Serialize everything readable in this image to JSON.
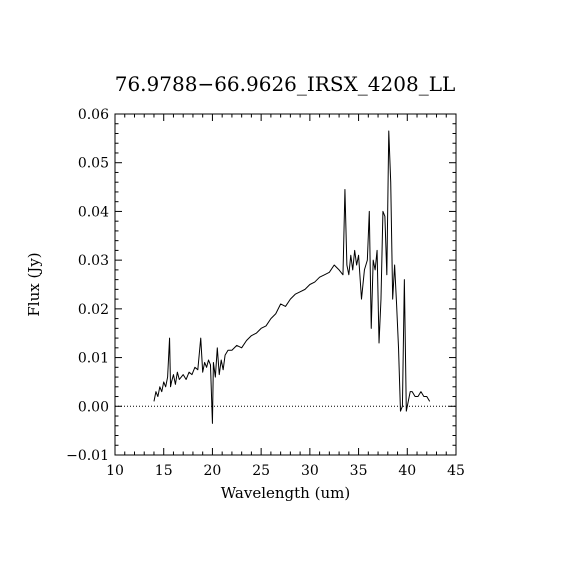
{
  "chart_data": {
    "type": "line",
    "title": "76.9788−66.9626_IRSX_4208_LL",
    "xlabel": "Wavelength (um)",
    "ylabel": "Flux (Jy)",
    "xlim": [
      10,
      45
    ],
    "ylim": [
      -0.01,
      0.06
    ],
    "x_ticks": [
      "10",
      "15",
      "20",
      "25",
      "30",
      "35",
      "40",
      "45"
    ],
    "x_tick_values": [
      10,
      15,
      20,
      25,
      30,
      35,
      40,
      45
    ],
    "y_ticks": [
      "−0.01",
      "0.00",
      "0.01",
      "0.02",
      "0.03",
      "0.04",
      "0.05",
      "0.06"
    ],
    "y_tick_values": [
      -0.01,
      0.0,
      0.01,
      0.02,
      0.03,
      0.04,
      0.05,
      0.06
    ],
    "zero_line": true,
    "series": [
      {
        "x": [
          14.0,
          14.2,
          14.4,
          14.6,
          14.8,
          15.0,
          15.2,
          15.4,
          15.6,
          15.7,
          15.8,
          16.0,
          16.2,
          16.4,
          16.6,
          16.8,
          17.0,
          17.3,
          17.6,
          17.9,
          18.2,
          18.5,
          18.8,
          19.0,
          19.2,
          19.4,
          19.6,
          19.8,
          20.0,
          20.1,
          20.3,
          20.5,
          20.7,
          20.9,
          21.1,
          21.3,
          21.6,
          22.0,
          22.5,
          23.0,
          23.5,
          24.0,
          24.5,
          25.0,
          25.5,
          26.0,
          26.5,
          27.0,
          27.5,
          28.0,
          28.5,
          29.0,
          29.5,
          30.0,
          30.5,
          31.0,
          31.5,
          32.0,
          32.5,
          33.0,
          33.4,
          33.6,
          33.8,
          34.0,
          34.2,
          34.4,
          34.6,
          34.8,
          35.0,
          35.3,
          35.6,
          35.9,
          36.1,
          36.3,
          36.5,
          36.7,
          36.9,
          37.1,
          37.3,
          37.5,
          37.7,
          37.9,
          38.1,
          38.3,
          38.5,
          38.7,
          38.9,
          39.1,
          39.3,
          39.5,
          39.7,
          39.9,
          40.1,
          40.3,
          40.5,
          40.8,
          41.1,
          41.4,
          41.7,
          42.0,
          42.3
        ],
        "y": [
          0.001,
          0.003,
          0.002,
          0.004,
          0.003,
          0.005,
          0.004,
          0.006,
          0.014,
          0.004,
          0.005,
          0.0065,
          0.0045,
          0.007,
          0.0055,
          0.006,
          0.0065,
          0.0055,
          0.007,
          0.0065,
          0.008,
          0.0075,
          0.014,
          0.007,
          0.009,
          0.008,
          0.0095,
          0.0085,
          -0.0035,
          0.009,
          0.006,
          0.012,
          0.0065,
          0.0095,
          0.0075,
          0.0105,
          0.0115,
          0.0115,
          0.0125,
          0.012,
          0.0135,
          0.0145,
          0.015,
          0.016,
          0.0165,
          0.018,
          0.019,
          0.021,
          0.0205,
          0.022,
          0.023,
          0.0235,
          0.024,
          0.025,
          0.0255,
          0.0265,
          0.027,
          0.0275,
          0.029,
          0.028,
          0.027,
          0.0445,
          0.029,
          0.027,
          0.031,
          0.028,
          0.032,
          0.029,
          0.031,
          0.022,
          0.028,
          0.03,
          0.04,
          0.016,
          0.03,
          0.028,
          0.032,
          0.013,
          0.022,
          0.04,
          0.039,
          0.027,
          0.0565,
          0.046,
          0.022,
          0.029,
          0.021,
          0.012,
          -0.001,
          0.0,
          0.026,
          -0.001,
          0.001,
          0.003,
          0.003,
          0.002,
          0.002,
          0.003,
          0.002,
          0.002,
          0.001
        ]
      }
    ]
  }
}
